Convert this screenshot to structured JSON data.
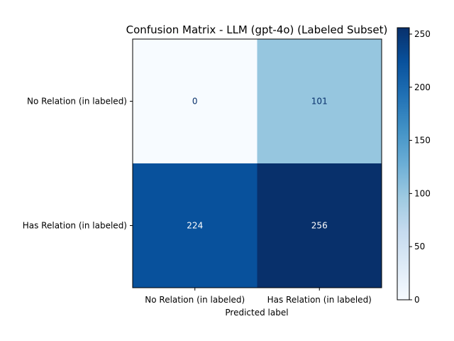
{
  "chart_data": {
    "type": "heatmap",
    "title": "Confusion Matrix - LLM (gpt-4o) (Labeled Subset)",
    "xlabel": "Predicted label",
    "ylabel": "",
    "row_labels": [
      "No Relation (in labeled)",
      "Has Relation (in labeled)"
    ],
    "col_labels": [
      "No Relation (in labeled)",
      "Has Relation (in labeled)"
    ],
    "values": [
      [
        0,
        101
      ],
      [
        224,
        256
      ]
    ],
    "colormap": "Blues",
    "color_range": [
      0,
      256
    ],
    "colorbar_ticks": [
      0,
      50,
      100,
      150,
      200,
      250
    ],
    "grid": false
  }
}
